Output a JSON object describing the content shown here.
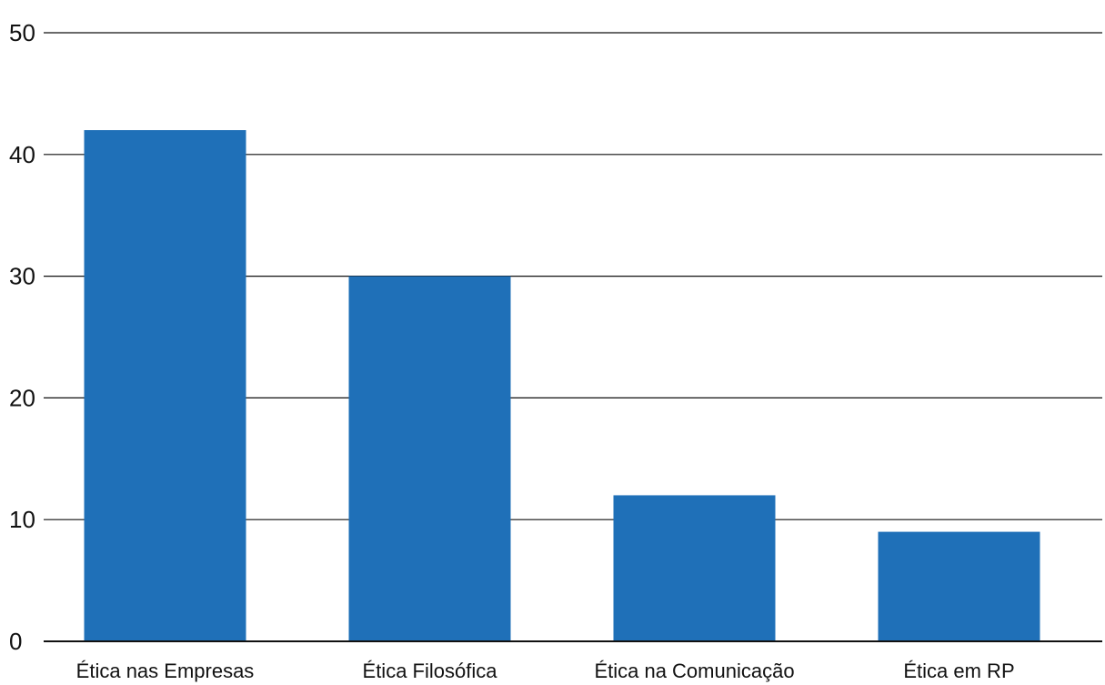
{
  "chart_data": {
    "type": "bar",
    "categories": [
      "Ética nas Empresas",
      "Ética Filosófica",
      "Ética na Comunicação",
      "Ética em RP"
    ],
    "values": [
      42,
      30,
      12,
      9
    ],
    "title": "",
    "xlabel": "",
    "ylabel": "",
    "ylim": [
      0,
      50
    ],
    "yticks": [
      0,
      10,
      20,
      30,
      40,
      50
    ],
    "grid": true,
    "legend": "none",
    "colors": {
      "bar": "#1f70b8",
      "grid": "#111111",
      "axis": "#111111"
    }
  }
}
